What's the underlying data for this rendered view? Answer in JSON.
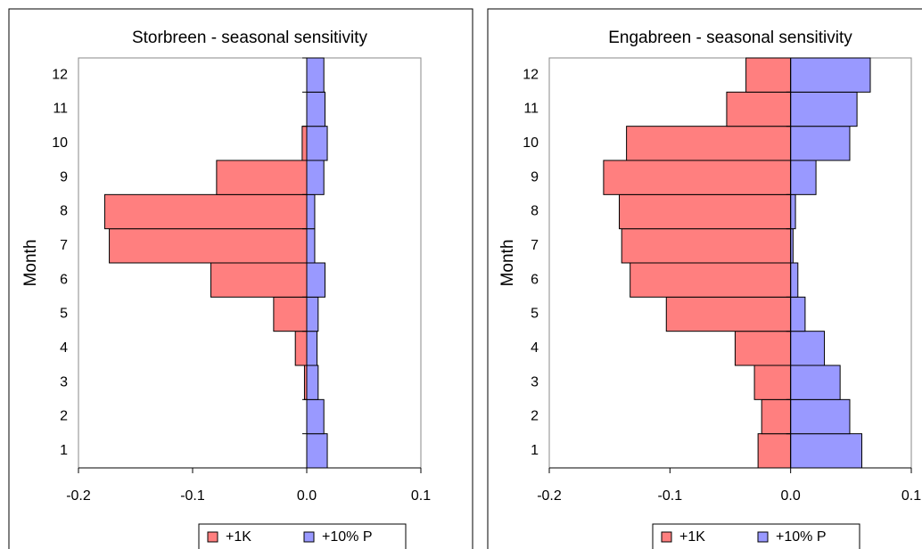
{
  "chart_data": [
    {
      "type": "bar",
      "orientation": "horizontal",
      "title": "Storbreen - seasonal sensitivity",
      "y_label": "Month",
      "categories": [
        "1",
        "2",
        "3",
        "4",
        "5",
        "6",
        "7",
        "8",
        "9",
        "10",
        "11",
        "12"
      ],
      "series": [
        {
          "name": "+1K",
          "color": "#ff7f7f",
          "values": [
            0,
            0,
            -0.002,
            -0.01,
            -0.029,
            -0.084,
            -0.173,
            -0.177,
            -0.079,
            -0.004,
            0,
            0
          ]
        },
        {
          "name": "+10% P",
          "color": "#9999ff",
          "values": [
            0.018,
            0.015,
            0.01,
            0.009,
            0.01,
            0.016,
            0.007,
            0.007,
            0.015,
            0.018,
            0.016,
            0.015
          ]
        }
      ],
      "xlim": [
        -0.2,
        0.1
      ],
      "xticks": [
        -0.2,
        -0.1,
        {
          "value": 0,
          "label": "0.0"
        },
        0.1
      ],
      "legend": "bottom"
    },
    {
      "type": "bar",
      "orientation": "horizontal",
      "title": "Engabreen - seasonal sensitivity",
      "y_label": "Month",
      "categories": [
        "1",
        "2",
        "3",
        "4",
        "5",
        "6",
        "7",
        "8",
        "9",
        "10",
        "11",
        "12"
      ],
      "series": [
        {
          "name": "+1K",
          "color": "#ff7f7f",
          "values": [
            -0.027,
            -0.024,
            -0.03,
            -0.046,
            -0.103,
            -0.133,
            -0.14,
            -0.142,
            -0.155,
            -0.136,
            -0.053,
            -0.037
          ]
        },
        {
          "name": "+10% P",
          "color": "#9999ff",
          "values": [
            0.059,
            0.049,
            0.041,
            0.028,
            0.012,
            0.006,
            0.002,
            0.004,
            0.021,
            0.049,
            0.055,
            0.066
          ]
        }
      ],
      "xlim": [
        -0.2,
        0.1
      ],
      "xticks": [
        -0.2,
        -0.1,
        {
          "value": 0,
          "label": "0.0"
        },
        0.1
      ],
      "legend": "bottom"
    }
  ]
}
